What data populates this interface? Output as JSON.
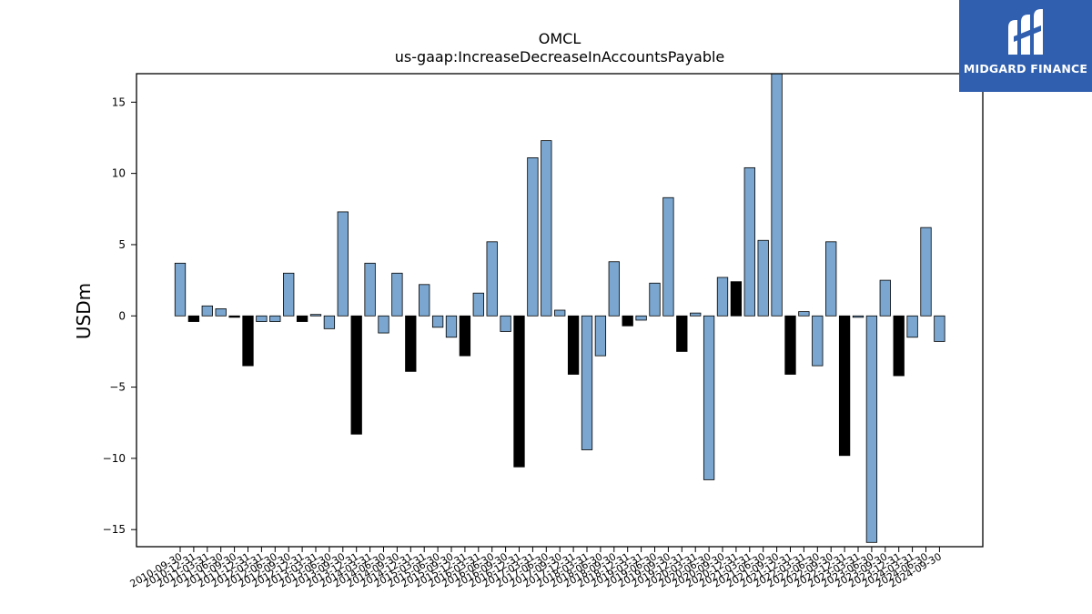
{
  "brand": {
    "name": "MIDGARD FINANCE",
    "bg": "#2f5fae"
  },
  "chart_data": {
    "type": "bar",
    "title": "OMCL",
    "subtitle": "us-gaap:IncreaseDecreaseInAccountsPayable",
    "ylabel": "USDm",
    "xlabel": "",
    "ylim": [
      -16.2,
      17.0
    ],
    "yticks": [
      -15,
      -10,
      -5,
      0,
      5,
      10,
      15
    ],
    "grid": false,
    "colors": {
      "quarter": "#7aa6cf",
      "annual": "#000000"
    },
    "categories": [
      "2010-09-30",
      "2010-12-31",
      "2011-03-31",
      "2011-06-30",
      "2011-09-30",
      "2011-12-31",
      "2012-03-31",
      "2012-06-30",
      "2012-09-30",
      "2012-12-31",
      "2013-03-31",
      "2013-06-30",
      "2013-09-30",
      "2013-12-31",
      "2014-03-31",
      "2014-06-30",
      "2014-09-30",
      "2014-12-31",
      "2015-03-31",
      "2015-06-30",
      "2015-09-30",
      "2015-12-31",
      "2016-03-31",
      "2016-06-30",
      "2016-09-30",
      "2016-12-31",
      "2017-03-31",
      "2017-06-30",
      "2017-09-30",
      "2017-12-31",
      "2018-03-31",
      "2018-06-30",
      "2018-09-30",
      "2018-12-31",
      "2019-03-31",
      "2019-06-30",
      "2019-09-30",
      "2019-12-31",
      "2020-03-31",
      "2020-06-30",
      "2020-09-30",
      "2020-12-31",
      "2021-03-31",
      "2021-06-30",
      "2021-09-30",
      "2021-12-31",
      "2022-03-31",
      "2022-06-30",
      "2022-09-30",
      "2022-12-31",
      "2023-03-31",
      "2023-06-30",
      "2023-09-30",
      "2023-12-31",
      "2024-03-31",
      "2024-06-30",
      "2024-09-30"
    ],
    "values": [
      3.7,
      -0.4,
      0.7,
      0.5,
      -0.1,
      -3.5,
      -0.4,
      -0.4,
      3.0,
      -0.4,
      0.1,
      -0.9,
      7.3,
      -8.3,
      3.7,
      -1.2,
      3.0,
      -3.9,
      2.2,
      -0.8,
      -1.5,
      -2.8,
      1.6,
      5.2,
      -1.1,
      -10.6,
      11.1,
      12.3,
      0.4,
      -4.1,
      -9.4,
      -2.8,
      3.8,
      -0.7,
      -0.3,
      2.3,
      8.3,
      -2.5,
      0.2,
      -11.5,
      2.7,
      2.4,
      10.4,
      5.3,
      17.3,
      -4.1,
      0.3,
      -3.5,
      5.2,
      -9.8,
      -0.1,
      -15.9,
      2.5,
      -4.2,
      -1.5,
      6.2,
      -1.8
    ],
    "annual": [
      false,
      true,
      false,
      false,
      true,
      true,
      false,
      false,
      false,
      true,
      false,
      false,
      false,
      true,
      false,
      false,
      false,
      true,
      false,
      false,
      false,
      true,
      false,
      false,
      false,
      true,
      false,
      false,
      false,
      true,
      false,
      false,
      false,
      true,
      false,
      false,
      false,
      true,
      false,
      false,
      false,
      true,
      false,
      false,
      false,
      true,
      false,
      false,
      false,
      true,
      false,
      false,
      false,
      true,
      false,
      false,
      false
    ]
  }
}
